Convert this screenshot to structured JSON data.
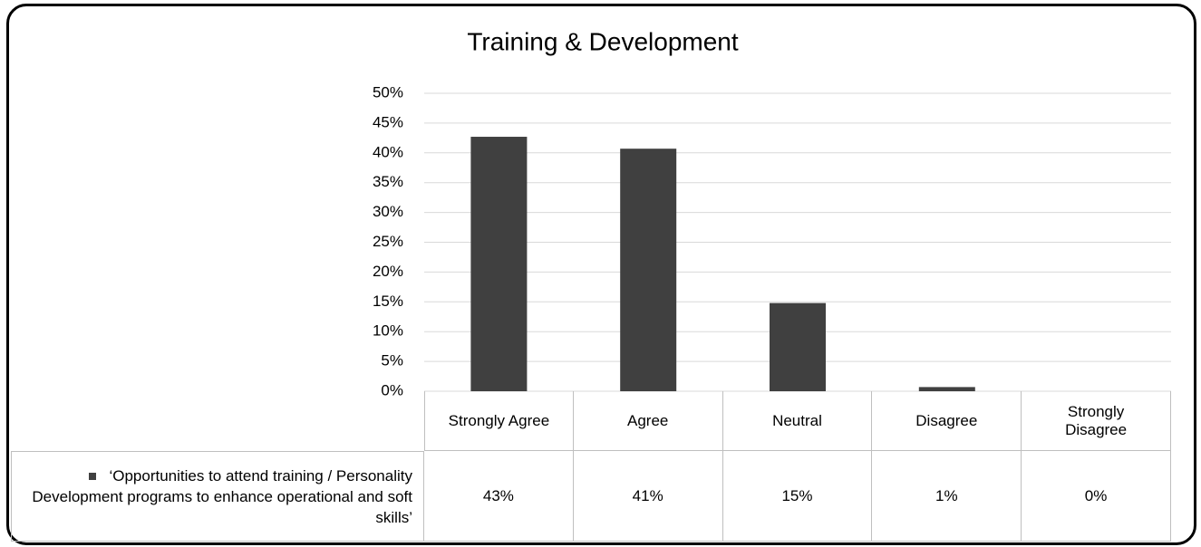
{
  "chart_data": {
    "type": "bar",
    "title": "Training & Development",
    "categories": [
      "Strongly Agree",
      "Agree",
      "Neutral",
      "Disagree",
      "Strongly Disagree"
    ],
    "series": [
      {
        "name": "‘Opportunities to attend training / Personality Development programs to enhance operational and soft skills’",
        "color": "#404040",
        "values": [
          42.7,
          40.7,
          14.8,
          0.7,
          0
        ],
        "value_labels": [
          "43%",
          "41%",
          "15%",
          "1%",
          "0%"
        ]
      }
    ],
    "ylim": [
      0,
      50
    ],
    "yticks": [
      {
        "value": 0,
        "label": "0%"
      },
      {
        "value": 5,
        "label": "5%"
      },
      {
        "value": 10,
        "label": "10%"
      },
      {
        "value": 15,
        "label": "15%"
      },
      {
        "value": 20,
        "label": "20%"
      },
      {
        "value": 25,
        "label": "25%"
      },
      {
        "value": 30,
        "label": "30%"
      },
      {
        "value": 35,
        "label": "35%"
      },
      {
        "value": 40,
        "label": "40%"
      },
      {
        "value": 45,
        "label": "45%"
      },
      {
        "value": 50,
        "label": "50%"
      }
    ],
    "grid": true
  }
}
